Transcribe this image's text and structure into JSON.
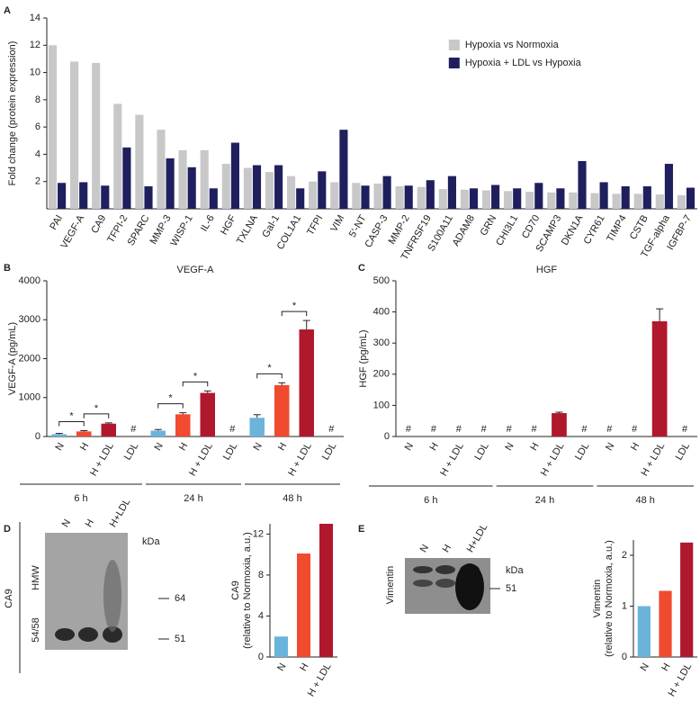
{
  "chart_data": [
    {
      "panel": "A",
      "type": "bar",
      "ylabel": "Fold change (protein expression)",
      "categories": [
        "PAI",
        "VEGF-A",
        "CA9",
        "TFPI-2",
        "SPARC",
        "MMP-3",
        "WISP-1",
        "IL-6",
        "HGF",
        "TXLNA",
        "Gal-1",
        "COL1A1",
        "TFPI",
        "VIM",
        "5'-NT",
        "CASP-3",
        "MMP-2",
        "TNFRSF19",
        "S100A11",
        "ADAM8",
        "GRN",
        "CHI3L1",
        "CD70",
        "SCAMP3",
        "DKN1A",
        "CYR61",
        "TIMP4",
        "CSTB",
        "TGF-alpha",
        "IGFBP-7"
      ],
      "category_colors": [
        "#222222",
        "#c2185b",
        "#c2185b",
        "#222222",
        "#222222",
        "#222222",
        "#c2185b",
        "#222222",
        "#c2185b",
        "#222222",
        "#222222",
        "#222222",
        "#222222",
        "#c2185b",
        "#222222",
        "#222222",
        "#222222",
        "#222222",
        "#222222",
        "#222222",
        "#222222",
        "#222222",
        "#222222",
        "#222222",
        "#222222",
        "#222222",
        "#222222",
        "#222222",
        "#222222",
        "#222222"
      ],
      "series": [
        {
          "name": "Hypoxia vs Normoxia",
          "color": "#c8c8c8",
          "values": [
            12.0,
            10.8,
            10.7,
            7.7,
            6.9,
            5.8,
            4.3,
            4.3,
            3.3,
            3.0,
            2.7,
            2.4,
            2.0,
            1.95,
            1.9,
            1.85,
            1.65,
            1.6,
            1.45,
            1.4,
            1.35,
            1.3,
            1.25,
            1.2,
            1.2,
            1.15,
            1.1,
            1.1,
            1.05,
            1.0
          ]
        },
        {
          "name": "Hypoxia + LDL vs  Hypoxia",
          "color": "#1f1f5e",
          "values": [
            1.9,
            1.95,
            1.7,
            4.5,
            1.65,
            3.7,
            3.05,
            1.5,
            4.85,
            3.2,
            3.2,
            1.5,
            2.75,
            5.8,
            1.7,
            2.4,
            1.7,
            2.1,
            2.4,
            1.5,
            1.75,
            1.5,
            1.9,
            1.5,
            3.5,
            1.95,
            1.65,
            1.65,
            3.3,
            1.55
          ]
        }
      ],
      "ylim": [
        0,
        14
      ],
      "yticks": [
        2,
        4,
        6,
        8,
        10,
        12,
        14
      ],
      "legend": "top-right"
    },
    {
      "panel": "B",
      "type": "bar",
      "title": "VEGF-A",
      "ylabel": "VEGF-A (pg/mL)",
      "categories": [
        "N",
        "H",
        "H + LDL",
        "LDL",
        "N",
        "H",
        "H + LDL",
        "LDL",
        "N",
        "H",
        "H + LDL",
        "LDL"
      ],
      "groups": [
        "6 h",
        "24 h",
        "48 h"
      ],
      "colors": [
        "#6ab4dc",
        "#f04a2f",
        "#b0182e",
        "#222222"
      ],
      "values": [
        60,
        130,
        330,
        null,
        150,
        570,
        1120,
        null,
        480,
        1320,
        2750,
        null
      ],
      "errors": [
        20,
        20,
        20,
        null,
        30,
        40,
        50,
        null,
        80,
        60,
        230,
        null
      ],
      "value_labels": [
        null,
        null,
        null,
        "#",
        null,
        null,
        null,
        "#",
        null,
        null,
        null,
        "#"
      ],
      "annotations": [
        {
          "label": "*",
          "between": [
            0,
            1
          ]
        },
        {
          "label": "*",
          "between": [
            1,
            2
          ]
        },
        {
          "label": "*",
          "between": [
            4,
            5
          ]
        },
        {
          "label": "*",
          "between": [
            5,
            6
          ]
        },
        {
          "label": "*",
          "between": [
            8,
            9
          ]
        },
        {
          "label": "*",
          "between": [
            9,
            10
          ]
        }
      ],
      "ylim": [
        0,
        4000
      ],
      "yticks": [
        0,
        1000,
        2000,
        3000,
        4000
      ]
    },
    {
      "panel": "C",
      "type": "bar",
      "title": "HGF",
      "ylabel": "HGF (pg/mL)",
      "categories": [
        "N",
        "H",
        "H + LDL",
        "LDL",
        "N",
        "H",
        "H + LDL",
        "LDL",
        "N",
        "H",
        "H + LDL",
        "LDL"
      ],
      "groups": [
        "6 h",
        "24 h",
        "48 h"
      ],
      "colors": [
        "#6ab4dc",
        "#f04a2f",
        "#b0182e",
        "#222222"
      ],
      "values": [
        null,
        null,
        null,
        null,
        null,
        null,
        75,
        null,
        null,
        null,
        370,
        null
      ],
      "errors": [
        null,
        null,
        null,
        null,
        null,
        null,
        3,
        null,
        null,
        null,
        40,
        null
      ],
      "value_labels": [
        "#",
        "#",
        "#",
        "#",
        "#",
        "#",
        null,
        "#",
        "#",
        "#",
        null,
        "#"
      ],
      "ylim": [
        0,
        500
      ],
      "yticks": [
        0,
        100,
        200,
        300,
        400,
        500
      ]
    },
    {
      "panel": "D",
      "type": "bar",
      "ylabel": [
        "CA9",
        "(relative to Normoxia, a.u.)"
      ],
      "categories": [
        "N",
        "H",
        "H + LDL"
      ],
      "colors": [
        "#6ab4dc",
        "#f04a2f",
        "#b0182e"
      ],
      "values": [
        2,
        10.1,
        13
      ],
      "ylim": [
        0,
        13
      ],
      "yticks": [
        0,
        4,
        8,
        12
      ],
      "blot": {
        "protein": "CA9",
        "lanes": [
          "N",
          "H",
          "H+LDL"
        ],
        "unit": "kDa",
        "markers": [
          64,
          51
        ],
        "rows": [
          "HMW",
          "54/58"
        ]
      }
    },
    {
      "panel": "E",
      "type": "bar",
      "ylabel": [
        "Vimentin",
        "(relative to Normoxia, a.u.)"
      ],
      "categories": [
        "N",
        "H",
        "H + LDL"
      ],
      "colors": [
        "#6ab4dc",
        "#f04a2f",
        "#b0182e"
      ],
      "values": [
        1,
        1.3,
        2.25
      ],
      "ylim": [
        0,
        2.3
      ],
      "yticks": [
        0,
        1,
        2
      ],
      "blot": {
        "protein": "Vimentin",
        "lanes": [
          "N",
          "H",
          "H+LDL"
        ],
        "unit": "kDa",
        "markers": [
          51
        ]
      }
    }
  ]
}
